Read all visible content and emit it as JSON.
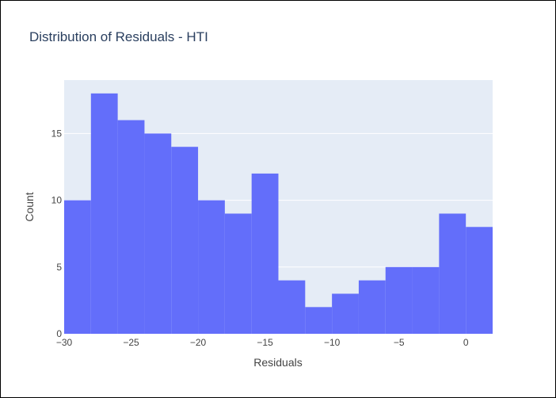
{
  "chart_data": {
    "type": "bar",
    "title": "Distribution of Residuals - HTI",
    "xlabel": "Residuals",
    "ylabel": "Count",
    "bins": [
      {
        "start": -30,
        "end": -28,
        "count": 10
      },
      {
        "start": -28,
        "end": -26,
        "count": 18
      },
      {
        "start": -26,
        "end": -24,
        "count": 16
      },
      {
        "start": -24,
        "end": -22,
        "count": 15
      },
      {
        "start": -22,
        "end": -20,
        "count": 14
      },
      {
        "start": -20,
        "end": -18,
        "count": 10
      },
      {
        "start": -18,
        "end": -16,
        "count": 9
      },
      {
        "start": -16,
        "end": -14,
        "count": 12
      },
      {
        "start": -14,
        "end": -12,
        "count": 4
      },
      {
        "start": -12,
        "end": -10,
        "count": 2
      },
      {
        "start": -10,
        "end": -8,
        "count": 3
      },
      {
        "start": -8,
        "end": -6,
        "count": 4
      },
      {
        "start": -6,
        "end": -4,
        "count": 5
      },
      {
        "start": -4,
        "end": -2,
        "count": 5
      },
      {
        "start": -2,
        "end": 0,
        "count": 9
      },
      {
        "start": 0,
        "end": 2,
        "count": 8
      }
    ],
    "xlim": [
      -30,
      2
    ],
    "ylim": [
      0,
      19
    ],
    "x_ticks": [
      {
        "value": -30,
        "label": "−30"
      },
      {
        "value": -25,
        "label": "−25"
      },
      {
        "value": -20,
        "label": "−20"
      },
      {
        "value": -15,
        "label": "−15"
      },
      {
        "value": -10,
        "label": "−10"
      },
      {
        "value": -5,
        "label": "−5"
      },
      {
        "value": 0,
        "label": "0"
      }
    ],
    "y_ticks": [
      {
        "value": 0,
        "label": "0"
      },
      {
        "value": 5,
        "label": "5"
      },
      {
        "value": 10,
        "label": "10"
      },
      {
        "value": 15,
        "label": "15"
      }
    ],
    "grid": true,
    "legend": "none",
    "bar_color": "#636efa",
    "plot_background": "#e5ecf6"
  }
}
